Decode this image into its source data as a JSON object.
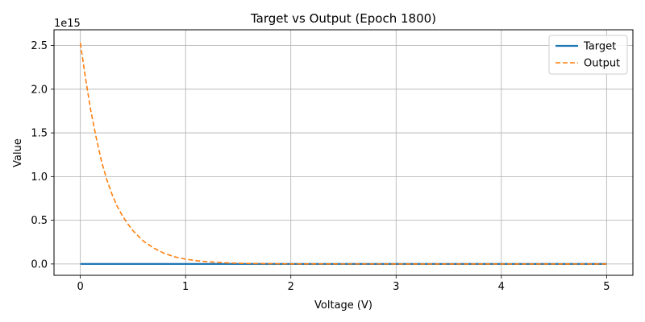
{
  "chart_data": {
    "type": "line",
    "title": "Target vs Output (Epoch 1800)",
    "xlabel": "Voltage (V)",
    "ylabel": "Value",
    "y_offset_label": "1e15",
    "xlim": [
      -0.25,
      5.25
    ],
    "ylim": [
      -0.13,
      2.68
    ],
    "xticks": [
      0,
      1,
      2,
      3,
      4,
      5
    ],
    "xtick_labels": [
      "0",
      "1",
      "2",
      "3",
      "4",
      "5"
    ],
    "yticks": [
      0.0,
      0.5,
      1.0,
      1.5,
      2.0,
      2.5
    ],
    "ytick_labels": [
      "0.0",
      "0.5",
      "1.0",
      "1.5",
      "2.0",
      "2.5"
    ],
    "grid": true,
    "legend_position": "top-right",
    "x": [
      0,
      0.05,
      0.1,
      0.15,
      0.2,
      0.25,
      0.3,
      0.35,
      0.4,
      0.45,
      0.5,
      0.6,
      0.7,
      0.8,
      0.9,
      1.0,
      1.1,
      1.2,
      1.3,
      1.4,
      1.5,
      1.6,
      1.7,
      1.8,
      2.0,
      2.25,
      2.5,
      3.0,
      3.5,
      4.0,
      4.5,
      5.0
    ],
    "series": [
      {
        "name": "Target",
        "color": "#1f77b4",
        "style": "solid",
        "values": [
          0,
          0,
          0,
          0,
          0,
          0,
          0,
          0,
          0,
          0,
          0,
          0,
          0,
          0,
          0,
          0,
          0,
          0,
          0,
          0,
          0,
          0,
          0,
          0,
          0,
          0,
          0,
          0,
          0,
          0,
          0,
          0
        ]
      },
      {
        "name": "Output",
        "color": "#ff7f0e",
        "style": "dashed",
        "values": [
          2.53,
          2.12,
          1.75,
          1.45,
          1.18,
          0.97,
          0.8,
          0.66,
          0.55,
          0.46,
          0.38,
          0.26,
          0.18,
          0.12,
          0.08,
          0.055,
          0.038,
          0.026,
          0.018,
          0.012,
          0.008,
          0.005,
          0.004,
          0.003,
          0.001,
          0.0005,
          0.0002,
          0,
          0,
          0,
          0,
          0
        ]
      }
    ]
  }
}
